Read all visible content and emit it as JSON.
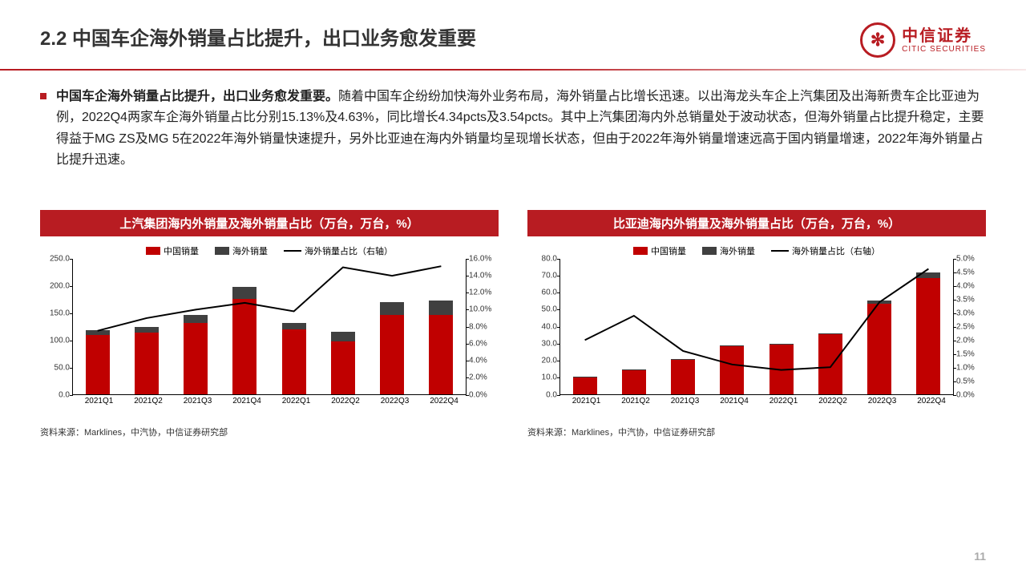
{
  "header": {
    "title": "2.2 中国车企海外销量占比提升，出口业务愈发重要",
    "logo_cn": "中信证券",
    "logo_en": "CITIC SECURITIES"
  },
  "body": {
    "bold_lead": "中国车企海外销量占比提升，出口业务愈发重要。",
    "rest": "随着中国车企纷纷加快海外业务布局，海外销量占比增长迅速。以出海龙头车企上汽集团及出海新贵车企比亚迪为例，2022Q4两家车企海外销量占比分别15.13%及4.63%，同比增长4.34pcts及3.54pcts。其中上汽集团海内外总销量处于波动状态，但海外销量占比提升稳定，主要得益于MG ZS及MG 5在2022年海外销量快速提升，另外比亚迪在海内外销量均呈现增长状态，但由于2022年海外销量增速远高于国内销量增速，2022年海外销量占比提升迅速。"
  },
  "legend_labels": {
    "china": "中国销量",
    "overseas": "海外销量",
    "ratio": "海外销量占比（右轴）"
  },
  "colors": {
    "china_bar": "#c00000",
    "overseas_bar": "#404040",
    "line": "#000000",
    "title_bg": "#b81c22",
    "axis": "#000000"
  },
  "chart1": {
    "title": "上汽集团海内外销量及海外销量占比（万台，万台，%）",
    "y_left": {
      "min": 0,
      "max": 250,
      "step": 50,
      "labels": [
        "0.0",
        "50.0",
        "100.0",
        "150.0",
        "200.0",
        "250.0"
      ]
    },
    "y_right": {
      "min": 0,
      "max": 16,
      "step": 2,
      "labels": [
        "0.0%",
        "2.0%",
        "4.0%",
        "6.0%",
        "8.0%",
        "10.0%",
        "12.0%",
        "14.0%",
        "16.0%"
      ]
    },
    "categories": [
      "2021Q1",
      "2021Q2",
      "2021Q3",
      "2021Q4",
      "2022Q1",
      "2022Q2",
      "2022Q3",
      "2022Q4"
    ],
    "china": [
      108,
      112,
      130,
      175,
      118,
      97,
      145,
      145
    ],
    "overseas": [
      9,
      11,
      15,
      22,
      13,
      17,
      23,
      26
    ],
    "ratio_pct": [
      7.5,
      9.0,
      10.0,
      10.8,
      9.8,
      15.0,
      14.0,
      15.13
    ],
    "source": "资料来源：Marklines，中汽协，中信证券研究部"
  },
  "chart2": {
    "title": "比亚迪海内外销量及海外销量占比（万台，万台，%）",
    "y_left": {
      "min": 0,
      "max": 80,
      "step": 10,
      "labels": [
        "0.0",
        "10.0",
        "20.0",
        "30.0",
        "40.0",
        "50.0",
        "60.0",
        "70.0",
        "80.0"
      ]
    },
    "y_right": {
      "min": 0,
      "max": 5,
      "step": 0.5,
      "labels": [
        "0.0%",
        "0.5%",
        "1.0%",
        "1.5%",
        "2.0%",
        "2.5%",
        "3.0%",
        "3.5%",
        "4.0%",
        "4.5%",
        "5.0%"
      ]
    },
    "categories": [
      "2021Q1",
      "2021Q2",
      "2021Q3",
      "2021Q4",
      "2022Q1",
      "2022Q2",
      "2022Q3",
      "2022Q4"
    ],
    "china": [
      10,
      14,
      20,
      28,
      29,
      35,
      53,
      68
    ],
    "overseas": [
      0.2,
      0.4,
      0.3,
      0.3,
      0.3,
      0.4,
      1.8,
      3.3
    ],
    "ratio_pct": [
      2.0,
      2.9,
      1.6,
      1.1,
      0.9,
      1.0,
      3.4,
      4.63
    ],
    "source": "资料来源：Marklines，中汽协，中信证券研究部"
  },
  "page_number": "11"
}
